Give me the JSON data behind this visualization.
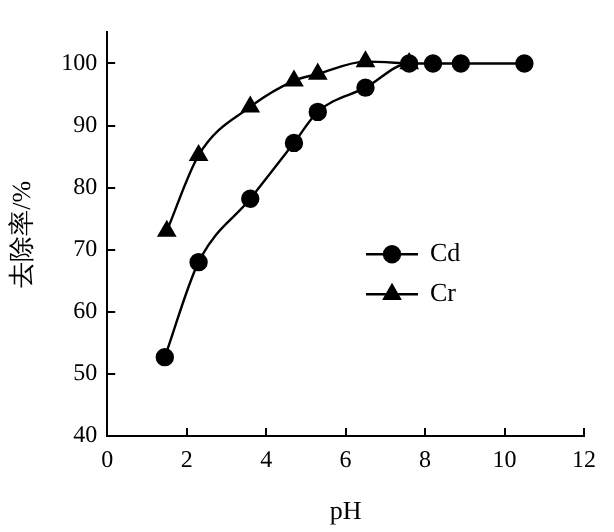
{
  "chart_data": {
    "type": "line",
    "xlabel": "pH",
    "ylabel": "去除率/%",
    "xlim": [
      0,
      12
    ],
    "xticks": [
      0,
      2,
      4,
      6,
      8,
      10,
      12
    ],
    "ylim": [
      40,
      105
    ],
    "yticks": [
      40,
      50,
      60,
      70,
      80,
      90,
      100
    ],
    "grid": false,
    "legend": "right",
    "series": [
      {
        "name": "Cd",
        "color": "#000000",
        "marker": "circle",
        "x": [
          1.45,
          2.3,
          3.6,
          4.7,
          5.3,
          6.5,
          7.6,
          8.2,
          8.9,
          10.5
        ],
        "values": [
          52.7,
          68,
          78.2,
          87.2,
          92.2,
          96.1,
          100,
          100,
          100,
          100
        ]
      },
      {
        "name": "Cr",
        "color": "#000000",
        "marker": "triangle",
        "x": [
          1.5,
          2.3,
          3.6,
          4.7,
          5.3,
          6.5,
          7.6
        ],
        "values": [
          73,
          85.2,
          93,
          97.2,
          98.3,
          100.3,
          100
        ]
      }
    ]
  }
}
